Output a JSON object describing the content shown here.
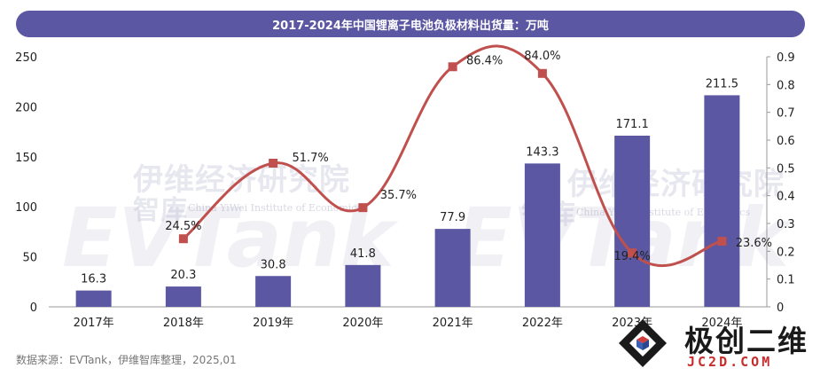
{
  "title": "2017-2024年中国锂离子电池负极材料出货量：万吨",
  "source": "数据来源：EVTank，伊维智库整理，2025,01",
  "watermark": {
    "cn": "伊维经济研究院",
    "en": "China YiWei Institute of Economics",
    "brand": "EVTank",
    "side": "智库"
  },
  "logo": {
    "text": "极创二维",
    "sub": "JC2D.COM"
  },
  "colors": {
    "title_bg": "#5b57a2",
    "bar": "#5b57a2",
    "line": "#c0504d",
    "marker": "#c0504d"
  },
  "chart_data": {
    "type": "bar",
    "categories": [
      "2017年",
      "2018年",
      "2019年",
      "2020年",
      "2021年",
      "2022年",
      "2023年",
      "2024年"
    ],
    "series": [
      {
        "type": "bar",
        "axis": "left",
        "values": [
          16.3,
          20.3,
          30.8,
          41.8,
          77.9,
          143.3,
          171.1,
          211.5
        ],
        "labels": [
          "16.3",
          "20.3",
          "30.8",
          "41.8",
          "77.9",
          "143.3",
          "171.1",
          "211.5"
        ]
      },
      {
        "type": "line",
        "axis": "right",
        "values": [
          null,
          0.245,
          0.517,
          0.357,
          0.864,
          0.84,
          0.194,
          0.236
        ],
        "labels": [
          "",
          "24.5%",
          "51.7%",
          "35.7%",
          "86.4%",
          "84.0%",
          "19.4%",
          "23.6%"
        ]
      }
    ],
    "y_left": {
      "min": 0,
      "max": 250,
      "ticks": [
        "0",
        "50",
        "100",
        "150",
        "200",
        "250"
      ],
      "tick_values": [
        0,
        50,
        100,
        150,
        200,
        250
      ]
    },
    "y_right": {
      "min": 0,
      "max": 0.9,
      "ticks": [
        "0",
        "0.1",
        "0.2",
        "0.3",
        "0.4",
        "0.5",
        "0.6",
        "0.7",
        "0.8",
        "0.9"
      ],
      "tick_values": [
        0,
        0.1,
        0.2,
        0.3,
        0.4,
        0.5,
        0.6,
        0.7,
        0.8,
        0.9
      ]
    },
    "grid": false,
    "legend": "none"
  }
}
